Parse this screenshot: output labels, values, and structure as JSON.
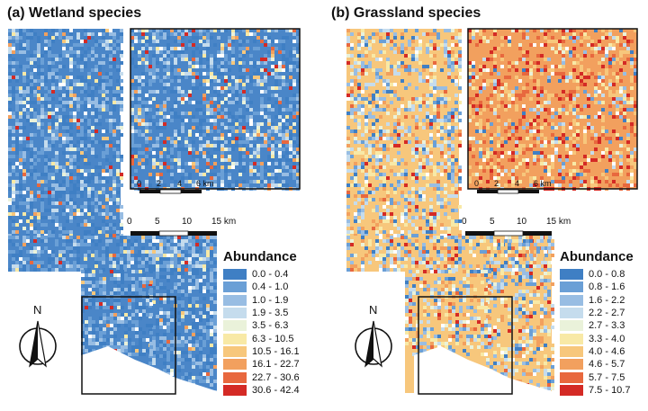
{
  "panels": [
    {
      "id": "a",
      "title": "(a) Wetland species",
      "legend_title": "Abundance",
      "classes": [
        {
          "range": "0.0   - 0.4",
          "color": "#3f7fc4"
        },
        {
          "range": "0.4   - 1.0",
          "color": "#6a9fd6"
        },
        {
          "range": "1.0   - 1.9",
          "color": "#98bde3"
        },
        {
          "range": "1.9   - 3.5",
          "color": "#c5dced"
        },
        {
          "range": "3.5   - 6.3",
          "color": "#eaf2da"
        },
        {
          "range": "6.3   - 10.5",
          "color": "#f8e9a6"
        },
        {
          "range": "10.5 - 16.1",
          "color": "#f7c77c"
        },
        {
          "range": "16.1 - 22.7",
          "color": "#f2a05e"
        },
        {
          "range": "22.7 - 30.6",
          "color": "#e8683e"
        },
        {
          "range": "30.6 - 42.4",
          "color": "#d42a25"
        }
      ]
    },
    {
      "id": "b",
      "title": "(b) Grassland species",
      "legend_title": "Abundance",
      "classes": [
        {
          "range": "0.0 - 0.8",
          "color": "#3f7fc4"
        },
        {
          "range": "0.8 - 1.6",
          "color": "#6a9fd6"
        },
        {
          "range": "1.6 - 2.2",
          "color": "#98bde3"
        },
        {
          "range": "2.2 - 2.7",
          "color": "#c5dced"
        },
        {
          "range": "2.7 - 3.3",
          "color": "#eaf2da"
        },
        {
          "range": "3.3 - 4.0",
          "color": "#f8e9a6"
        },
        {
          "range": "4.0 - 4.6",
          "color": "#f7c77c"
        },
        {
          "range": "4.6 - 5.7",
          "color": "#f2a05e"
        },
        {
          "range": "5.7 - 7.5",
          "color": "#e8683e"
        },
        {
          "range": "7.5 - 10.7",
          "color": "#d42a25"
        }
      ]
    }
  ],
  "scalebar_main": {
    "labels": [
      "0",
      "5",
      "10",
      "15 km"
    ]
  },
  "scalebar_inset": {
    "labels": [
      "0",
      "2",
      "4",
      "6 km"
    ]
  },
  "north_label": "N"
}
